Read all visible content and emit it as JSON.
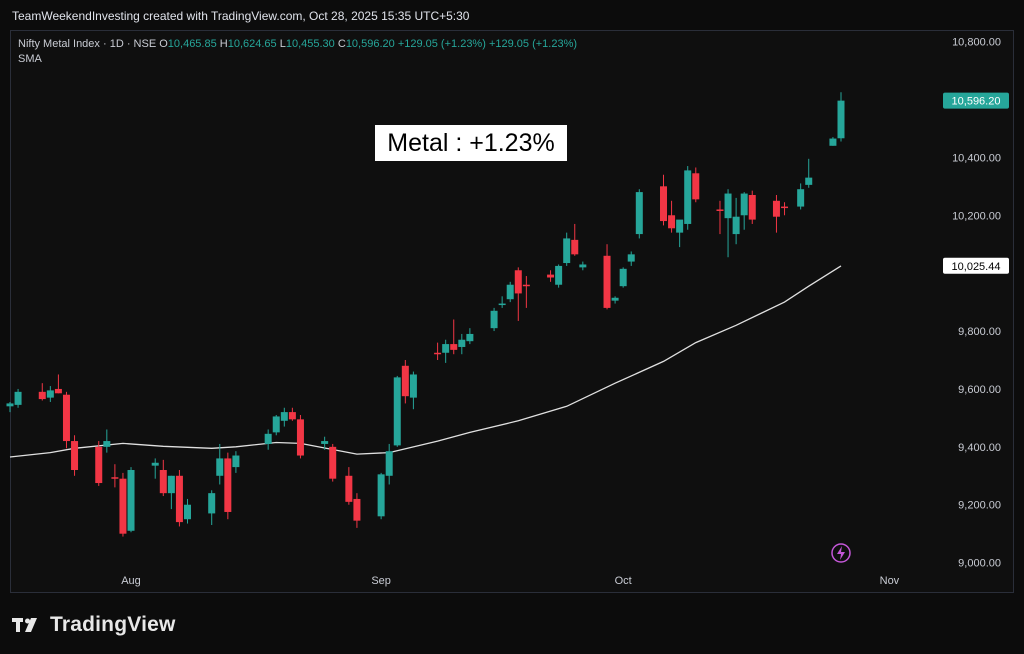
{
  "header": {
    "credit": "TeamWeekendInvesting created with TradingView.com, Oct 28, 2025 15:35 UTC+5:30"
  },
  "legend": {
    "symbol": "Nifty Metal Index · 1D · NSE",
    "o_label": "O",
    "o": "10,465.85",
    "h_label": "H",
    "h": "10,624.65",
    "l_label": "L",
    "l": "10,455.30",
    "c_label": "C",
    "c": "10,596.20",
    "change": "+129.05 (+1.23%)",
    "change2": "+129.05 (+1.23%)",
    "indicator": "SMA"
  },
  "callout": "Metal : +1.23%",
  "footer": {
    "brand": "TradingView",
    "logo_icon": "tradingview-logo-icon"
  },
  "colors": {
    "up": "#26a69a",
    "down": "#f23645",
    "sma": "#e0e0e0",
    "background": "#0f0f0f",
    "text": "#c9ccd4"
  },
  "chart_data": {
    "type": "candlestick",
    "y_axis": {
      "position": "right",
      "ylim": [
        8940,
        10840
      ],
      "ticks": [
        "9,000.00",
        "9,200.00",
        "9,400.00",
        "9,600.00",
        "9,800.00",
        "10,200.00",
        "10,400.00",
        "10,800.00"
      ]
    },
    "x_axis": {
      "labels": [
        "Aug",
        "Sep",
        "Oct",
        "Nov"
      ],
      "label_dates": [
        "2025-08-01",
        "2025-09-01",
        "2025-10-01",
        "2025-11-03"
      ]
    },
    "price_label": "10,596.20",
    "sma_label": "10,025.44",
    "last_sma": 10025.44,
    "grid": false,
    "icon": "lightning-icon",
    "candles": [
      [
        "2025-07-17",
        9540,
        9555,
        9520,
        9550
      ],
      [
        "2025-07-18",
        9545,
        9600,
        9535,
        9590
      ],
      [
        "2025-07-21",
        9590,
        9620,
        9560,
        9565
      ],
      [
        "2025-07-22",
        9570,
        9610,
        9555,
        9595
      ],
      [
        "2025-07-23",
        9600,
        9650,
        9585,
        9585
      ],
      [
        "2025-07-24",
        9580,
        9590,
        9395,
        9420
      ],
      [
        "2025-07-25",
        9420,
        9440,
        9300,
        9320
      ],
      [
        "2025-07-28",
        9400,
        9420,
        9265,
        9275
      ],
      [
        "2025-07-29",
        9400,
        9460,
        9380,
        9420
      ],
      [
        "2025-07-30",
        9295,
        9340,
        9260,
        9290
      ],
      [
        "2025-07-31",
        9290,
        9310,
        9090,
        9100
      ],
      [
        "2025-08-01",
        9110,
        9330,
        9105,
        9320
      ],
      [
        "2025-08-04",
        9335,
        9360,
        9290,
        9345
      ],
      [
        "2025-08-05",
        9320,
        9355,
        9230,
        9240
      ],
      [
        "2025-08-06",
        9240,
        9300,
        9185,
        9300
      ],
      [
        "2025-08-07",
        9300,
        9320,
        9125,
        9140
      ],
      [
        "2025-08-08",
        9150,
        9220,
        9135,
        9200
      ],
      [
        "2025-08-11",
        9170,
        9250,
        9130,
        9240
      ],
      [
        "2025-08-12",
        9300,
        9410,
        9270,
        9360
      ],
      [
        "2025-08-13",
        9360,
        9380,
        9150,
        9175
      ],
      [
        "2025-08-14",
        9330,
        9385,
        9310,
        9370
      ],
      [
        "2025-08-18",
        9410,
        9460,
        9390,
        9445
      ],
      [
        "2025-08-19",
        9450,
        9510,
        9440,
        9505
      ],
      [
        "2025-08-20",
        9490,
        9535,
        9470,
        9520
      ],
      [
        "2025-08-21",
        9520,
        9535,
        9490,
        9495
      ],
      [
        "2025-08-22",
        9495,
        9510,
        9360,
        9370
      ],
      [
        "2025-08-25",
        9410,
        9435,
        9390,
        9420
      ],
      [
        "2025-08-26",
        9400,
        9410,
        9280,
        9290
      ],
      [
        "2025-08-28",
        9300,
        9330,
        9200,
        9210
      ],
      [
        "2025-08-29",
        9220,
        9240,
        9120,
        9145
      ],
      [
        "2025-09-01",
        9160,
        9310,
        9150,
        9305
      ],
      [
        "2025-09-02",
        9300,
        9410,
        9270,
        9385
      ],
      [
        "2025-09-03",
        9405,
        9645,
        9400,
        9640
      ],
      [
        "2025-09-04",
        9680,
        9700,
        9550,
        9575
      ],
      [
        "2025-09-05",
        9570,
        9660,
        9530,
        9650
      ],
      [
        "2025-09-08",
        9725,
        9760,
        9700,
        9720
      ],
      [
        "2025-09-09",
        9725,
        9770,
        9690,
        9755
      ],
      [
        "2025-09-10",
        9755,
        9840,
        9720,
        9735
      ],
      [
        "2025-09-11",
        9745,
        9790,
        9720,
        9770
      ],
      [
        "2025-09-12",
        9765,
        9810,
        9755,
        9790
      ],
      [
        "2025-09-15",
        9810,
        9880,
        9800,
        9870
      ],
      [
        "2025-09-16",
        9890,
        9920,
        9880,
        9895
      ],
      [
        "2025-09-17",
        9910,
        9970,
        9900,
        9960
      ],
      [
        "2025-09-18",
        10010,
        10020,
        9835,
        9930
      ],
      [
        "2025-09-19",
        9960,
        9990,
        9880,
        9955
      ],
      [
        "2025-09-22",
        9995,
        10010,
        9970,
        9985
      ],
      [
        "2025-09-23",
        9960,
        10030,
        9950,
        10025
      ],
      [
        "2025-09-24",
        10035,
        10140,
        10025,
        10120
      ],
      [
        "2025-09-25",
        10115,
        10170,
        10060,
        10065
      ],
      [
        "2025-09-26",
        10020,
        10040,
        10010,
        10030
      ],
      [
        "2025-09-29",
        10060,
        10100,
        9875,
        9880
      ],
      [
        "2025-09-30",
        9905,
        9920,
        9895,
        9915
      ],
      [
        "2025-10-01",
        9955,
        10020,
        9950,
        10015
      ],
      [
        "2025-10-02",
        10040,
        10075,
        10025,
        10065
      ],
      [
        "2025-10-03",
        10135,
        10290,
        10120,
        10280
      ],
      [
        "2025-10-06",
        10300,
        10340,
        10165,
        10180
      ],
      [
        "2025-10-07",
        10200,
        10250,
        10140,
        10155
      ],
      [
        "2025-10-08",
        10140,
        10180,
        10090,
        10185
      ],
      [
        "2025-10-09",
        10170,
        10370,
        10150,
        10355
      ],
      [
        "2025-10-10",
        10345,
        10365,
        10245,
        10255
      ],
      [
        "2025-10-13",
        10220,
        10250,
        10135,
        10215
      ],
      [
        "2025-10-14",
        10190,
        10290,
        10055,
        10275
      ],
      [
        "2025-10-15",
        10135,
        10260,
        10100,
        10195
      ],
      [
        "2025-10-16",
        10200,
        10280,
        10150,
        10275
      ],
      [
        "2025-10-17",
        10270,
        10285,
        10170,
        10185
      ],
      [
        "2025-10-20",
        10250,
        10270,
        10140,
        10195
      ],
      [
        "2025-10-21",
        10230,
        10245,
        10200,
        10225
      ],
      [
        "2025-10-23",
        10230,
        10310,
        10220,
        10290
      ],
      [
        "2025-10-24",
        10305,
        10395,
        10295,
        10330
      ],
      [
        "2025-10-27",
        10440,
        10470,
        10440,
        10465
      ],
      [
        "2025-10-28",
        10466,
        10625,
        10455,
        10596
      ]
    ],
    "sma": [
      [
        "2025-07-17",
        9365
      ],
      [
        "2025-07-22",
        9380
      ],
      [
        "2025-07-25",
        9395
      ],
      [
        "2025-07-31",
        9412
      ],
      [
        "2025-08-05",
        9402
      ],
      [
        "2025-08-11",
        9395
      ],
      [
        "2025-08-14",
        9400
      ],
      [
        "2025-08-19",
        9415
      ],
      [
        "2025-08-22",
        9412
      ],
      [
        "2025-08-29",
        9375
      ],
      [
        "2025-09-02",
        9380
      ],
      [
        "2025-09-08",
        9420
      ],
      [
        "2025-09-12",
        9450
      ],
      [
        "2025-09-18",
        9490
      ],
      [
        "2025-09-24",
        9540
      ],
      [
        "2025-09-30",
        9620
      ],
      [
        "2025-10-06",
        9695
      ],
      [
        "2025-10-10",
        9760
      ],
      [
        "2025-10-15",
        9820
      ],
      [
        "2025-10-21",
        9900
      ],
      [
        "2025-10-24",
        9955
      ],
      [
        "2025-10-28",
        10025
      ]
    ]
  }
}
